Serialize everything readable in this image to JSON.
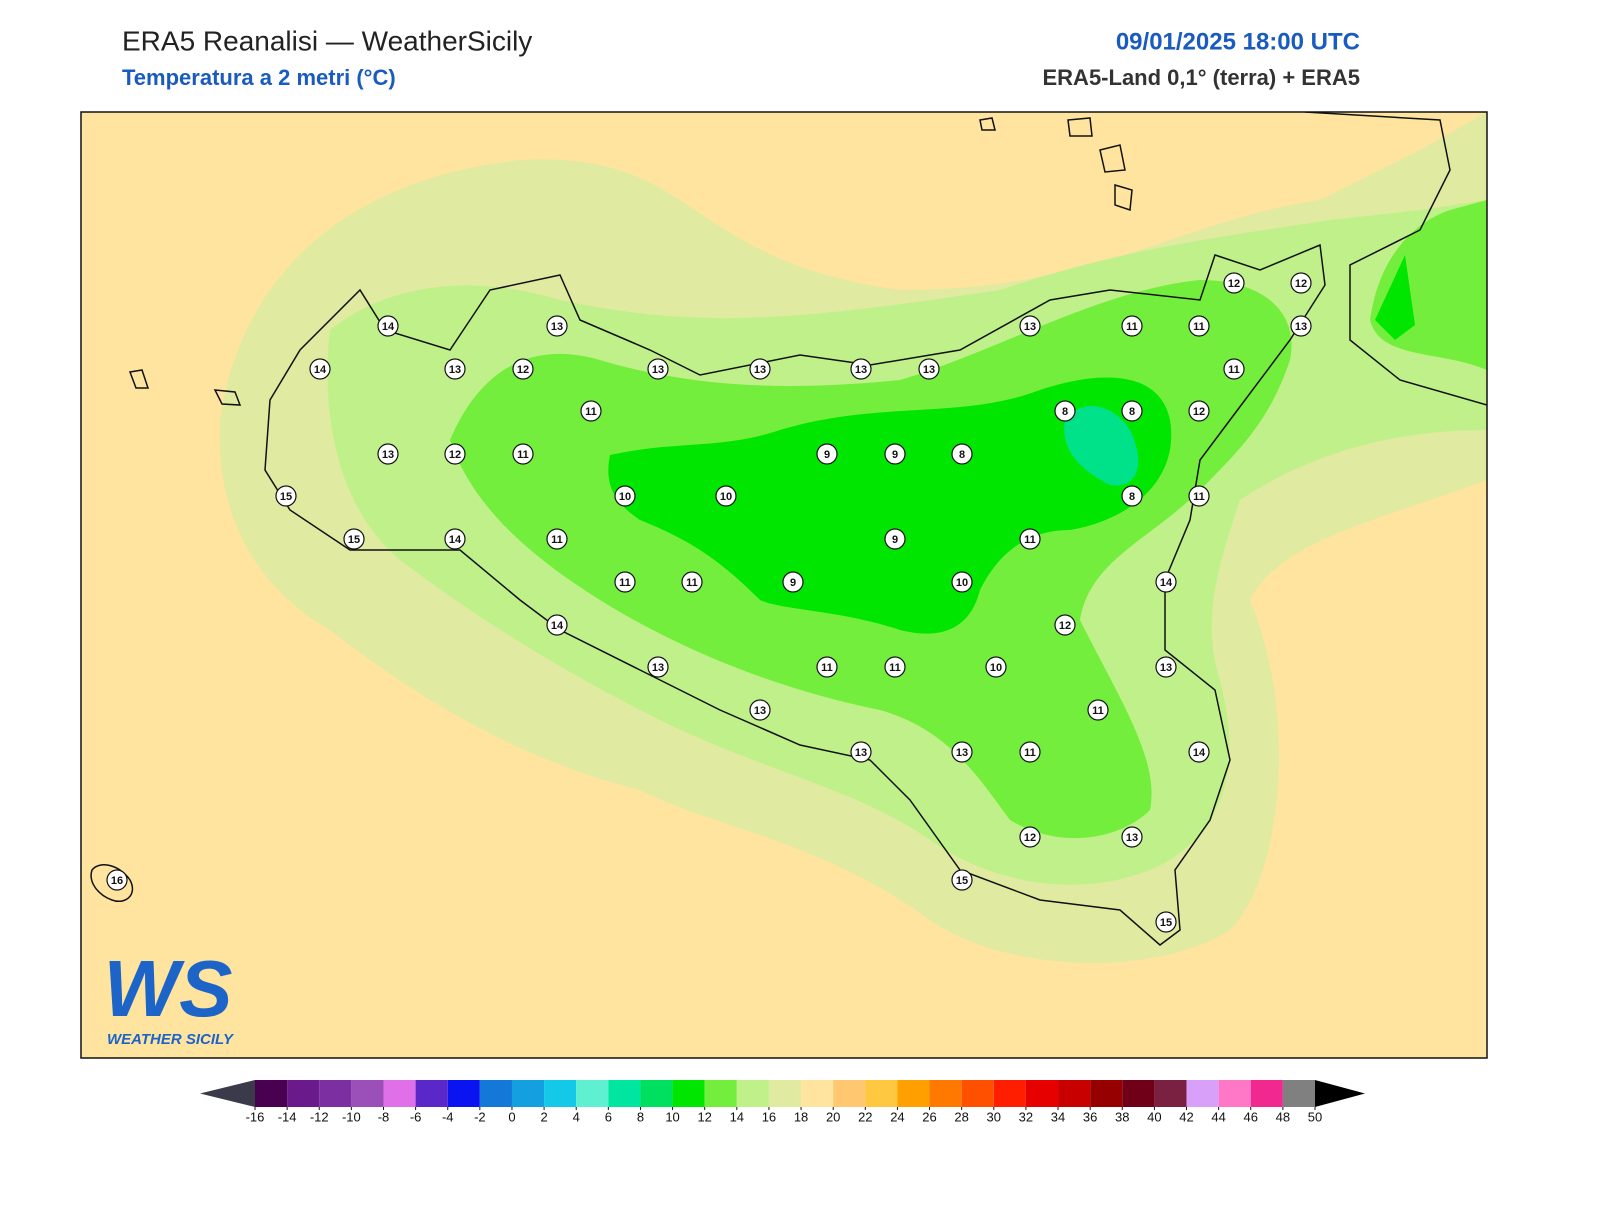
{
  "header": {
    "title": "ERA5 Reanalisi — WeatherSicily",
    "subtitle": "Temperatura a 2 metri (°C)",
    "datetime": "09/01/2025 18:00 UTC",
    "source": "ERA5-Land 0,1° (terra) + ERA5"
  },
  "map": {
    "stations": [
      14,
      13,
      14,
      13,
      12,
      13,
      13,
      13,
      13,
      13,
      11,
      11,
      12,
      12,
      13,
      11,
      11,
      8,
      8,
      12,
      13,
      12,
      11,
      9,
      9,
      8,
      15,
      10,
      10,
      8,
      11,
      15,
      14,
      11,
      9,
      11,
      11,
      11,
      9,
      10,
      14,
      14,
      12,
      13,
      11,
      11,
      10,
      13,
      13,
      11,
      13,
      13,
      11,
      14,
      12,
      13,
      15,
      15,
      16
    ]
  },
  "logo": {
    "mark": "WS",
    "text": "WEATHER SICILY"
  },
  "colorbar": {
    "ticks": [
      -16,
      -14,
      -12,
      -10,
      -8,
      -6,
      -4,
      -2,
      0,
      2,
      4,
      6,
      8,
      10,
      12,
      14,
      16,
      18,
      20,
      22,
      24,
      26,
      28,
      30,
      32,
      34,
      36,
      38,
      40,
      42,
      44,
      46,
      48,
      50
    ],
    "colors": [
      "#4a0050",
      "#6a1a8a",
      "#7b2fa0",
      "#9b4fb8",
      "#e070e8",
      "#5a28c8",
      "#0a14f0",
      "#1478d8",
      "#14a0e0",
      "#14c8e8",
      "#5ef0d0",
      "#00e6a0",
      "#00e060",
      "#00e600",
      "#74ee3c",
      "#c0f08a",
      "#e0eaa0",
      "#ffe4a0",
      "#ffc870",
      "#ffc840",
      "#ffa000",
      "#ff7800",
      "#ff5000",
      "#ff1e00",
      "#e60000",
      "#c80000",
      "#960000",
      "#700018",
      "#7a2040",
      "#d8a0f8",
      "#ff78c8",
      "#f02890",
      "#808080"
    ],
    "under_color": "#3a3a4a",
    "over_color": "#000000"
  }
}
